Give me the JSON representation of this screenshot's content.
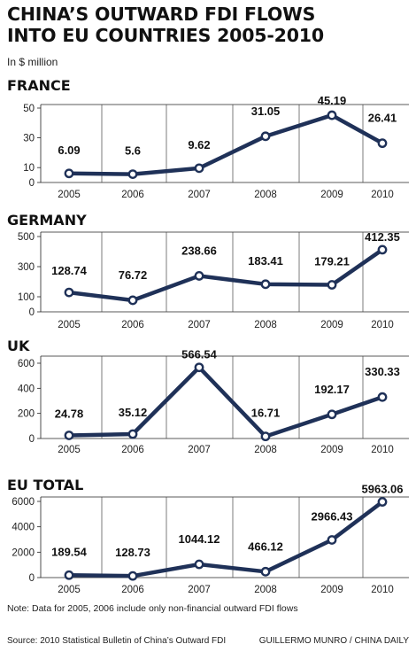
{
  "title_line1": "CHINA’S OUTWARD FDI FLOWS",
  "title_line2": "INTO EU COUNTRIES 2005-2010",
  "unit": "In $ million",
  "note": "Note: Data for 2005, 2006 include only non-financial outward FDI flows",
  "source": "Source: 2010 Statistical Bulletin of China’s Outward FDI",
  "credit": "GUILLERMO MUNRO / CHINA DAILY",
  "line_color": "#1f3158",
  "chart_data": [
    {
      "type": "line",
      "title": "FRANCE",
      "x": [
        "2005",
        "2006",
        "2007",
        "2008",
        "2009",
        "2010"
      ],
      "values": [
        6.09,
        5.6,
        9.62,
        31.05,
        45.19,
        26.41
      ],
      "labels": [
        "6.09",
        "5.6",
        "9.62",
        "31.05",
        "45.19",
        "26.41"
      ],
      "yticks": [
        0,
        10,
        30,
        50
      ],
      "ylim": [
        0,
        50
      ]
    },
    {
      "type": "line",
      "title": "GERMANY",
      "x": [
        "2005",
        "2006",
        "2007",
        "2008",
        "2009",
        "2010"
      ],
      "values": [
        128.74,
        76.72,
        238.66,
        183.41,
        179.21,
        412.35
      ],
      "labels": [
        "128.74",
        "76.72",
        "238.66",
        "183.41",
        "179.21",
        "412.35"
      ],
      "yticks": [
        0,
        100,
        300,
        500
      ],
      "ylim": [
        0,
        500
      ]
    },
    {
      "type": "line",
      "title": "UK",
      "x": [
        "2005",
        "2006",
        "2007",
        "2008",
        "2009",
        "2010"
      ],
      "values": [
        24.78,
        35.12,
        566.54,
        16.71,
        192.17,
        330.33
      ],
      "labels": [
        "24.78",
        "35.12",
        "566.54",
        "16.71",
        "192.17",
        "330.33"
      ],
      "yticks": [
        0,
        200,
        400,
        600
      ],
      "ylim": [
        0,
        600
      ]
    },
    {
      "type": "line",
      "title": "EU TOTAL",
      "x": [
        "2005",
        "2006",
        "2007",
        "2008",
        "2009",
        "2010"
      ],
      "values": [
        189.54,
        128.73,
        1044.12,
        466.12,
        2966.43,
        5963.06
      ],
      "labels": [
        "189.54",
        "128.73",
        "1044.12",
        "466.12",
        "2966.43",
        "5963.06"
      ],
      "yticks": [
        0,
        2000,
        4000,
        6000
      ],
      "ylim": [
        0,
        6000
      ]
    }
  ]
}
